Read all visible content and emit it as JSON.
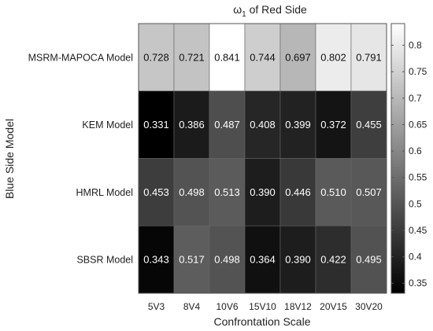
{
  "chart_data": {
    "type": "heatmap",
    "title": {
      "main": "ω",
      "subscript": "1",
      "rest": " of Red Side"
    },
    "xlabel": "Confrontation Scale",
    "ylabel": "Blue Side Model",
    "x_categories": [
      "5V3",
      "8V4",
      "10V6",
      "15V10",
      "18V12",
      "20V15",
      "30V20"
    ],
    "y_categories": [
      "MSRM-MAPOCA Model",
      "KEM Model",
      "HMRL Model",
      "SBSR Model"
    ],
    "values": [
      [
        0.728,
        0.721,
        0.841,
        0.744,
        0.697,
        0.802,
        0.791
      ],
      [
        0.331,
        0.386,
        0.487,
        0.408,
        0.399,
        0.372,
        0.455
      ],
      [
        0.453,
        0.498,
        0.513,
        0.39,
        0.446,
        0.51,
        0.507
      ],
      [
        0.343,
        0.517,
        0.498,
        0.364,
        0.39,
        0.422,
        0.495
      ]
    ],
    "value_labels": [
      [
        "0.728",
        "0.721",
        "0.841",
        "0.744",
        "0.697",
        "0.802",
        "0.791"
      ],
      [
        "0.331",
        "0.386",
        "0.487",
        "0.408",
        "0.399",
        "0.372",
        "0.455"
      ],
      [
        "0.453",
        "0.498",
        "0.513",
        "0.390",
        "0.446",
        "0.510",
        "0.507"
      ],
      [
        "0.343",
        "0.517",
        "0.498",
        "0.364",
        "0.390",
        "0.422",
        "0.495"
      ]
    ],
    "colormap": "gray",
    "color_range": [
      0.331,
      0.841
    ],
    "colorbar": {
      "ticks": [
        0.35,
        0.4,
        0.45,
        0.5,
        0.55,
        0.6,
        0.65,
        0.7,
        0.75,
        0.8
      ],
      "tick_labels": [
        "0.35",
        "0.4",
        "0.45",
        "0.5",
        "0.55",
        "0.6",
        "0.65",
        "0.7",
        "0.75",
        "0.8"
      ],
      "placement": "right"
    }
  }
}
